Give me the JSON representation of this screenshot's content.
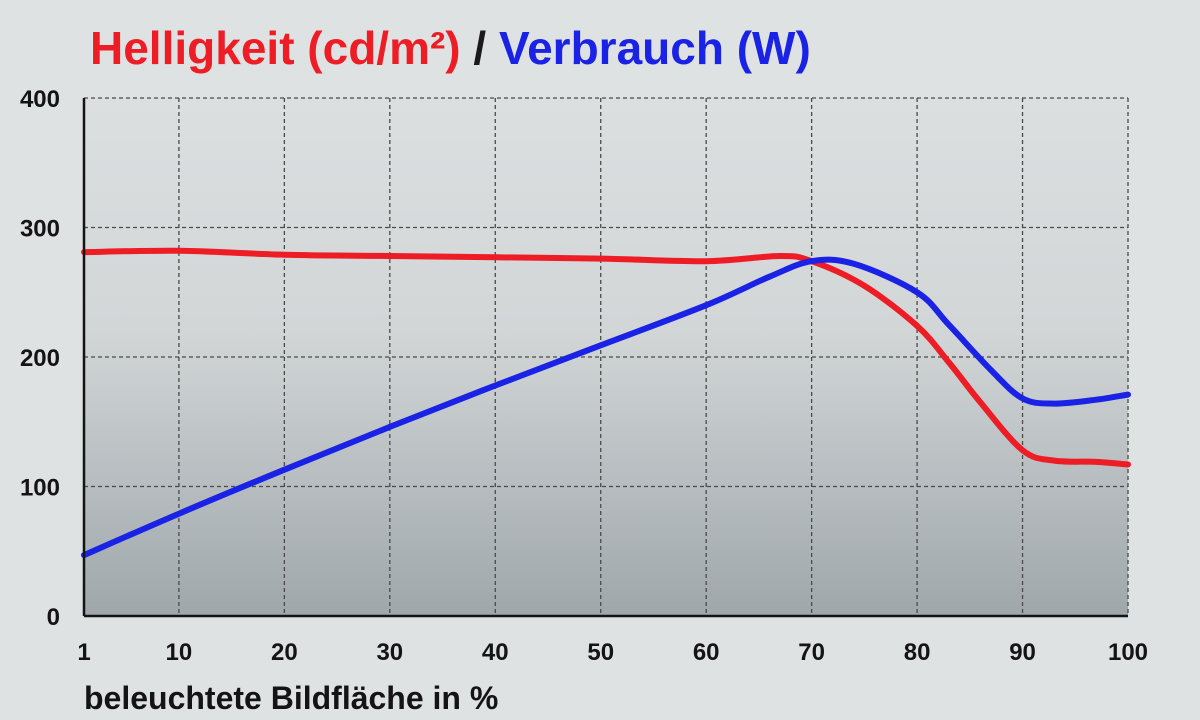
{
  "chart_data": {
    "type": "line",
    "title_parts": [
      {
        "text": "Helligkeit (cd/m²)",
        "color": "#ee1c24"
      },
      {
        "text": " / ",
        "color": "#1a1a1a"
      },
      {
        "text": "Verbrauch (W)",
        "color": "#1a22e6"
      }
    ],
    "xlabel": "beleuchtete Bildfläche in %",
    "ylabel": "",
    "x_ticks": [
      1,
      10,
      20,
      30,
      40,
      50,
      60,
      70,
      80,
      90,
      100
    ],
    "y_ticks": [
      0,
      100,
      200,
      300,
      400
    ],
    "xlim": [
      1,
      100
    ],
    "ylim": [
      0,
      400
    ],
    "grid": true,
    "series": [
      {
        "color": "#ee1c24",
        "points": [
          [
            1,
            281
          ],
          [
            10,
            282
          ],
          [
            20,
            279
          ],
          [
            30,
            278
          ],
          [
            40,
            277
          ],
          [
            50,
            276
          ],
          [
            60,
            274
          ],
          [
            67,
            278
          ],
          [
            70,
            274
          ],
          [
            75,
            255
          ],
          [
            80,
            224
          ],
          [
            83,
            196
          ],
          [
            86,
            165
          ],
          [
            90,
            128
          ],
          [
            93,
            120
          ],
          [
            97,
            119
          ],
          [
            100,
            117
          ]
        ]
      },
      {
        "color": "#1a22e6",
        "points": [
          [
            1,
            47
          ],
          [
            10,
            79
          ],
          [
            20,
            113
          ],
          [
            30,
            146
          ],
          [
            40,
            178
          ],
          [
            50,
            209
          ],
          [
            60,
            240
          ],
          [
            66,
            262
          ],
          [
            70,
            274
          ],
          [
            74,
            272
          ],
          [
            80,
            250
          ],
          [
            83,
            225
          ],
          [
            87,
            190
          ],
          [
            90,
            168
          ],
          [
            93,
            164
          ],
          [
            97,
            167
          ],
          [
            100,
            171
          ]
        ]
      }
    ],
    "colors": {
      "background": "#dfe2e3",
      "plot_top": "#dcdfe0",
      "plot_bottom": "#9fa7ab",
      "grid": "#4a4a4a",
      "axis": "#141414"
    }
  }
}
